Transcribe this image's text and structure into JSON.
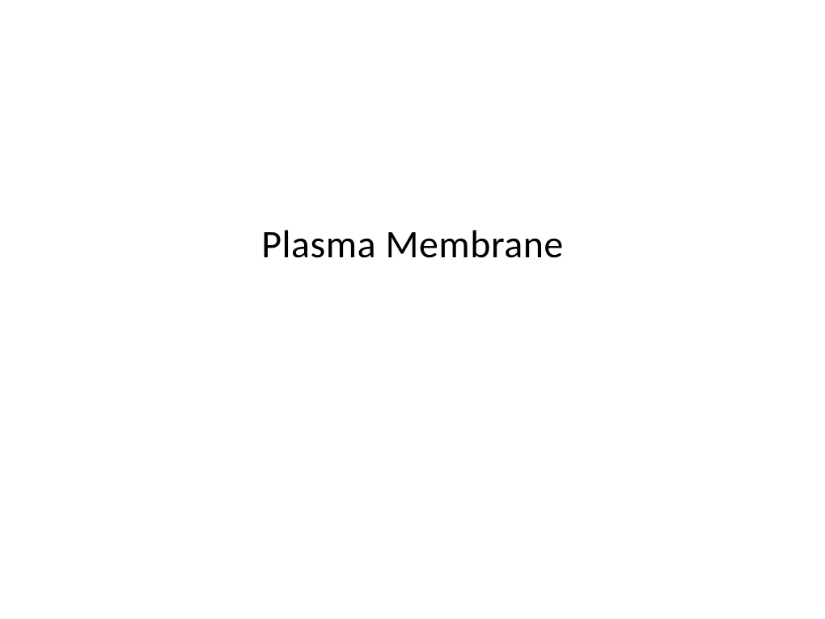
{
  "slide": {
    "title": "Plasma Membrane",
    "title_fontsize": 48,
    "title_color": "#000000",
    "title_weight": 400,
    "background_color": "#ffffff",
    "font_family": "Calibri"
  }
}
